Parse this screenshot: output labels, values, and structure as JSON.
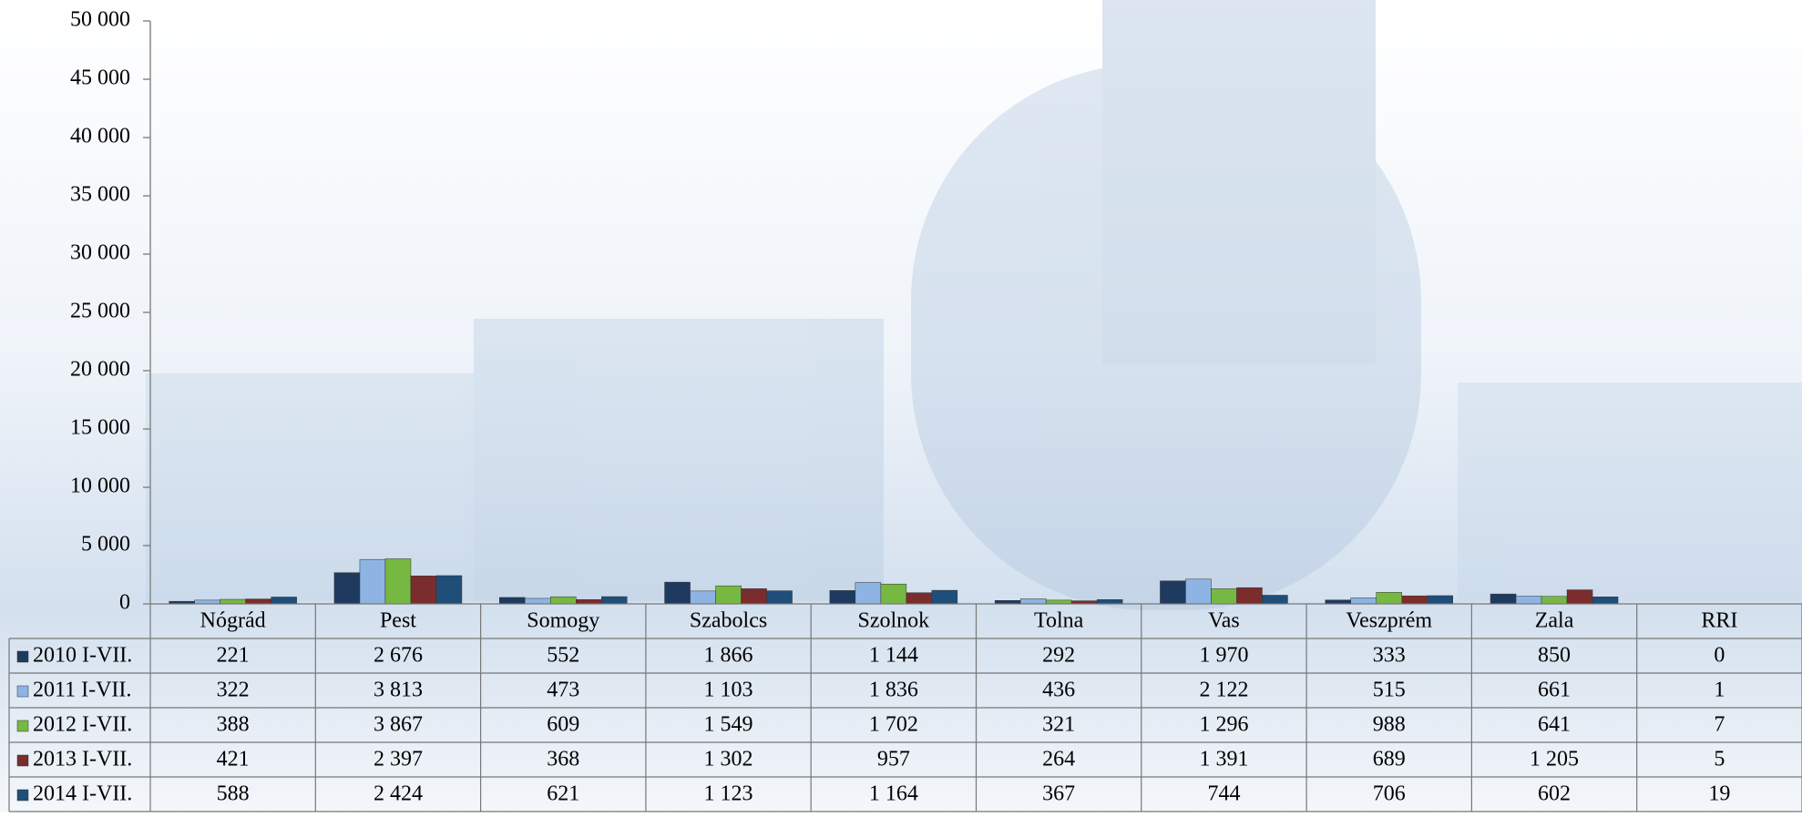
{
  "chart_data": {
    "type": "bar",
    "categories": [
      "Nógrád",
      "Pest",
      "Somogy",
      "Szabolcs",
      "Szolnok",
      "Tolna",
      "Vas",
      "Veszprém",
      "Zala",
      "RRI"
    ],
    "series": [
      {
        "name": "2010 I-VII.",
        "color": "#1f3a5f",
        "values": [
          221,
          2676,
          552,
          1866,
          1144,
          292,
          1970,
          333,
          850,
          0
        ],
        "value_labels": [
          "221",
          "2 676",
          "552",
          "1 866",
          "1 144",
          "292",
          "1 970",
          "333",
          "850",
          "0"
        ]
      },
      {
        "name": "2011 I-VII.",
        "color": "#8db4e2",
        "values": [
          322,
          3813,
          473,
          1103,
          1836,
          436,
          2122,
          515,
          661,
          1
        ],
        "value_labels": [
          "322",
          "3 813",
          "473",
          "1 103",
          "1 836",
          "436",
          "2 122",
          "515",
          "661",
          "1"
        ]
      },
      {
        "name": "2012 I-VII.",
        "color": "#77b843",
        "values": [
          388,
          3867,
          609,
          1549,
          1702,
          321,
          1296,
          988,
          641,
          7
        ],
        "value_labels": [
          "388",
          "3 867",
          "609",
          "1 549",
          "1 702",
          "321",
          "1 296",
          "988",
          "641",
          "7"
        ]
      },
      {
        "name": "2013 I-VII.",
        "color": "#7b2c2c",
        "values": [
          421,
          2397,
          368,
          1302,
          957,
          264,
          1391,
          689,
          1205,
          5
        ],
        "value_labels": [
          "421",
          "2 397",
          "368",
          "1 302",
          "957",
          "264",
          "1 391",
          "689",
          "1 205",
          "5"
        ]
      },
      {
        "name": "2014 I-VII.",
        "color": "#1f4e79",
        "values": [
          588,
          2424,
          621,
          1123,
          1164,
          367,
          744,
          706,
          602,
          19
        ],
        "value_labels": [
          "588",
          "2 424",
          "621",
          "1 123",
          "1 164",
          "367",
          "744",
          "706",
          "602",
          "19"
        ]
      }
    ],
    "ylim": [
      0,
      50000
    ],
    "yticks": [
      0,
      {
        "value": 5000,
        "label": "5 000"
      },
      {
        "value": 10000,
        "label": "10 000"
      },
      {
        "value": 15000,
        "label": "15 000"
      },
      {
        "value": 20000,
        "label": "20 000"
      },
      {
        "value": 25000,
        "label": "25 000"
      },
      {
        "value": 30000,
        "label": "30 000"
      },
      {
        "value": 35000,
        "label": "35 000"
      },
      {
        "value": 40000,
        "label": "40 000"
      },
      {
        "value": 45000,
        "label": "45 000"
      },
      {
        "value": 50000,
        "label": "50 000"
      }
    ]
  }
}
